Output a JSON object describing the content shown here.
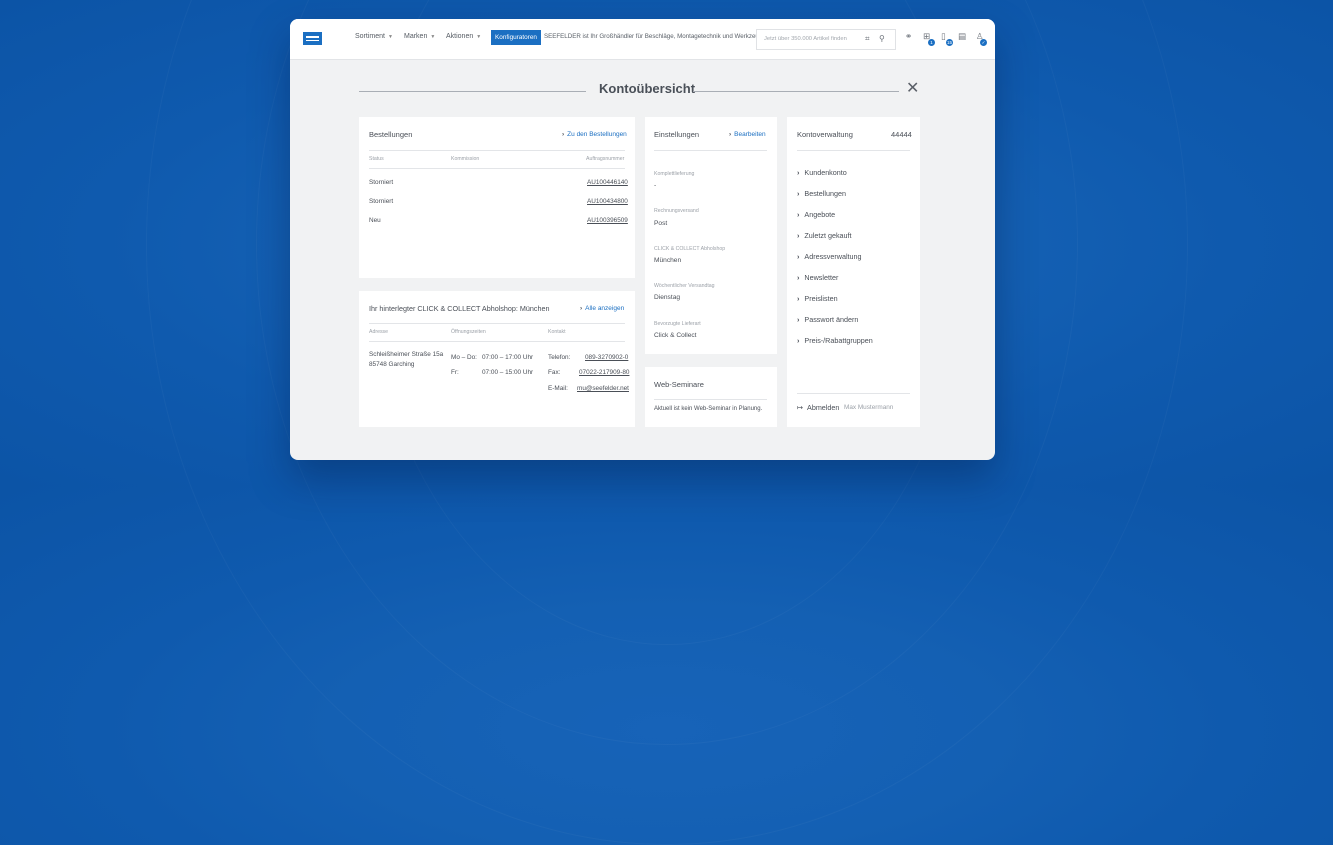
{
  "header": {
    "nav": [
      "Sortiment",
      "Marken",
      "Aktionen"
    ],
    "konfigurator": "Konfiguratoren",
    "tagline": "SEEFELDER ist Ihr Großhändler für Beschläge, Montagetechnik und Werkzeuge.",
    "search_placeholder": "Jetzt über 350.000 Artikel finden",
    "badges": [
      "1",
      "15"
    ]
  },
  "page": {
    "title": "Kontoübersicht"
  },
  "orders": {
    "title": "Bestellungen",
    "link": "Zu den Bestellungen",
    "columns": [
      "Status",
      "Kommission",
      "Auftragsnummer"
    ],
    "rows": [
      {
        "status": "Storniert",
        "commission": "",
        "number": "AU100446140"
      },
      {
        "status": "Storniert",
        "commission": "",
        "number": "AU100434800"
      },
      {
        "status": "Neu",
        "commission": "",
        "number": "AU100396509"
      }
    ]
  },
  "shop": {
    "title": "Ihr hinterlegter CLICK & COLLECT Abholshop: München",
    "link": "Alle anzeigen",
    "columns": [
      "Adresse",
      "Öffnungszeiten",
      "Kontakt"
    ],
    "address": [
      "Schleißheimer Straße 15a",
      "85748 Garching"
    ],
    "hours": [
      {
        "days": "Mo – Do:",
        "time": "07:00 – 17:00 Uhr"
      },
      {
        "days": "Fr:",
        "time": "07:00 – 15:00 Uhr"
      }
    ],
    "contact": [
      {
        "label": "Telefon:",
        "value": "089-3270902-0"
      },
      {
        "label": "Fax:",
        "value": "07022-217909-80"
      },
      {
        "label": "E-Mail:",
        "value": "mu@seefelder.net"
      }
    ]
  },
  "settings": {
    "title": "Einstellungen",
    "link": "Bearbeiten",
    "items": [
      {
        "label": "Komplettlieferung",
        "value": "-"
      },
      {
        "label": "Rechnungsversand",
        "value": "Post"
      },
      {
        "label": "CLICK & COLLECT Abholshop",
        "value": "München"
      },
      {
        "label": "Wöchentlicher Versandtag",
        "value": "Dienstag"
      },
      {
        "label": "Bevorzugte Lieferart",
        "value": "Click & Collect"
      }
    ]
  },
  "seminars": {
    "title": "Web-Seminare",
    "text": "Aktuell ist kein Web-Seminar in Planung."
  },
  "account": {
    "title": "Kontoverwaltung",
    "number": "44444",
    "menu": [
      "Kundenkonto",
      "Bestellungen",
      "Angebote",
      "Zuletzt gekauft",
      "Adressverwaltung",
      "Newsletter",
      "Preislisten",
      "Passwort ändern",
      "Preis-/Rabattgruppen"
    ],
    "logout": "Abmelden",
    "user": "Max Mustermann"
  },
  "colors": {
    "accent": "#1b6fc2",
    "background": "#0f5aae"
  }
}
